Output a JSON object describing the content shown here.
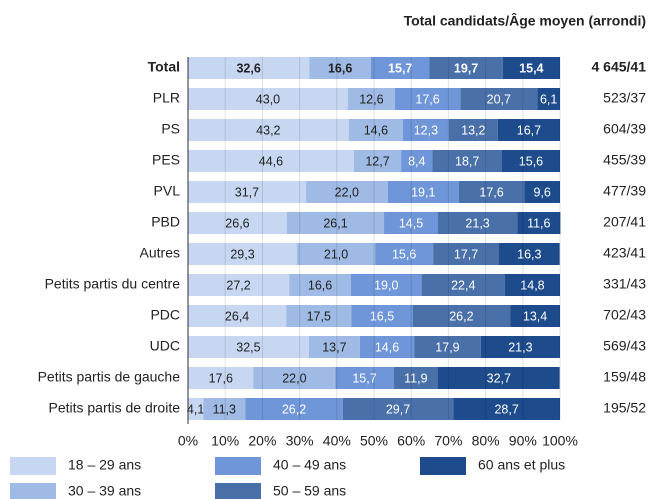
{
  "chart_data": {
    "type": "stacked_barh",
    "header": "Total candidats/Âge moyen (arrondi)",
    "categories": [
      "Total",
      "PLR",
      "PS",
      "PES",
      "PVL",
      "PBD",
      "Autres",
      "Petits partis du centre",
      "PDC",
      "UDC",
      "Petits partis de gauche",
      "Petits partis de droite"
    ],
    "totals": [
      "4 645/41",
      "523/37",
      "604/39",
      "455/39",
      "477/39",
      "207/41",
      "423/41",
      "331/43",
      "702/43",
      "569/43",
      "159/48",
      "195/52"
    ],
    "series": [
      {
        "name": "18 – 29 ans",
        "color": "#c8d7f1",
        "values": [
          32.6,
          43.0,
          43.2,
          44.6,
          31.7,
          26.6,
          29.3,
          27.2,
          26.4,
          32.5,
          17.6,
          4.1
        ],
        "value_labels": [
          "32,6",
          "43,0",
          "43,2",
          "44,6",
          "31,7",
          "26,6",
          "29,3",
          "27,2",
          "26,4",
          "32,5",
          "17,6",
          "4,1"
        ]
      },
      {
        "name": "30 – 39 ans",
        "color": "#9fbae4",
        "values": [
          16.6,
          12.6,
          14.6,
          12.7,
          22.0,
          26.1,
          21.0,
          16.6,
          17.5,
          13.7,
          22.0,
          11.3
        ],
        "value_labels": [
          "16,6",
          "12,6",
          "14,6",
          "12,7",
          "22,0",
          "26,1",
          "21,0",
          "16,6",
          "17,5",
          "13,7",
          "22,0",
          "11,3"
        ]
      },
      {
        "name": "40 – 49 ans",
        "color": "#6f96d8",
        "values": [
          15.7,
          17.6,
          12.3,
          8.4,
          19.1,
          14.5,
          15.6,
          19.0,
          16.5,
          14.6,
          15.7,
          26.2
        ],
        "value_labels": [
          "15,7",
          "17,6",
          "12,3",
          "8,4",
          "19,1",
          "14,5",
          "15,6",
          "19,0",
          "16,5",
          "14,6",
          "15,7",
          "26,2"
        ]
      },
      {
        "name": "50 – 59 ans",
        "color": "#4a70aa",
        "values": [
          19.7,
          20.7,
          13.2,
          18.7,
          17.6,
          21.3,
          17.7,
          22.4,
          26.2,
          17.9,
          11.9,
          29.7
        ],
        "value_labels": [
          "19,7",
          "20,7",
          "13,2",
          "18,7",
          "17,6",
          "21,3",
          "17,7",
          "22,4",
          "26,2",
          "17,9",
          "11,9",
          "29,7"
        ]
      },
      {
        "name": "60 ans et plus",
        "color": "#1d4b8c",
        "values": [
          15.4,
          6.1,
          16.7,
          15.6,
          9.6,
          11.6,
          16.3,
          14.8,
          13.4,
          21.3,
          32.7,
          28.7
        ],
        "value_labels": [
          "15,4",
          "6,1",
          "16,7",
          "15,6",
          "9,6",
          "11,6",
          "16,3",
          "14,8",
          "13,4",
          "21,3",
          "32,7",
          "28,7"
        ]
      }
    ],
    "xlim": [
      0,
      100
    ],
    "xticks": [
      {
        "value": 0,
        "label": "0%"
      },
      {
        "value": 10,
        "label": "10%"
      },
      {
        "value": 20,
        "label": "20%"
      },
      {
        "value": 30,
        "label": "30%"
      },
      {
        "value": 40,
        "label": "40%"
      },
      {
        "value": 50,
        "label": "50%"
      },
      {
        "value": 60,
        "label": "60%"
      },
      {
        "value": 70,
        "label": "70%"
      },
      {
        "value": 80,
        "label": "80%"
      },
      {
        "value": 90,
        "label": "90%"
      },
      {
        "value": 100,
        "label": "100%"
      }
    ],
    "grid": true
  }
}
